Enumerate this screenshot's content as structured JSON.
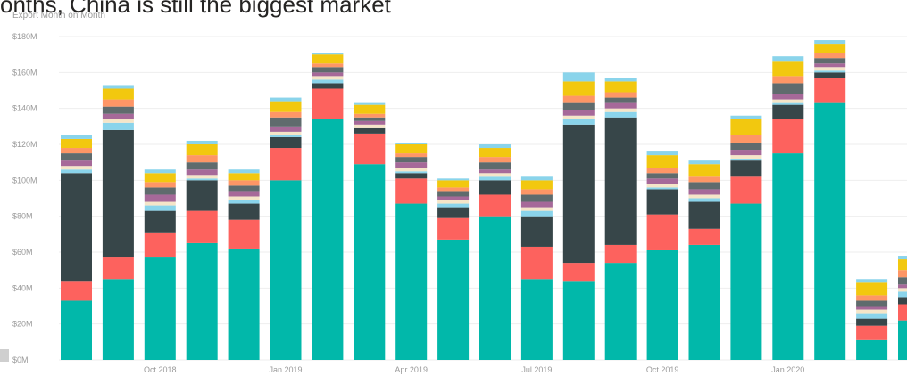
{
  "header": {
    "title": "onths, China is still the biggest market",
    "subtitle": "Export Month on Month"
  },
  "chart_data": {
    "type": "bar",
    "stacked": true,
    "subtitle": "Export Month on Month",
    "ylim": [
      0,
      180
    ],
    "yticks": [
      0,
      20,
      40,
      60,
      80,
      100,
      120,
      140,
      160,
      180
    ],
    "ytick_labels": [
      "$0M",
      "$20M",
      "$40M",
      "$60M",
      "$80M",
      "$100M",
      "$120M",
      "$140M",
      "$160M",
      "$180M"
    ],
    "xtick_labels": [
      {
        "label": "Oct 2018",
        "bar_index": 2
      },
      {
        "label": "Jan 2019",
        "bar_index": 5
      },
      {
        "label": "Apr 2019",
        "bar_index": 8
      },
      {
        "label": "Jul 2019",
        "bar_index": 11
      },
      {
        "label": "Oct 2019",
        "bar_index": 14
      },
      {
        "label": "Jan 2020",
        "bar_index": 17
      }
    ],
    "grid": true,
    "legend": "none",
    "colors": [
      "#01b8aa",
      "#fd625e",
      "#374649",
      "#8ad4eb",
      "#f5e5c8",
      "#a66999",
      "#5f6b6d",
      "#fe9666",
      "#f2c80f",
      "#8ad4eb"
    ],
    "series": [
      {
        "values": [
          33,
          45,
          57,
          65,
          62,
          100,
          134,
          109,
          87,
          67,
          80,
          45,
          44,
          54,
          61,
          64,
          87,
          115,
          143,
          11,
          22
        ]
      },
      {
        "values": [
          11,
          12,
          14,
          18,
          16,
          18,
          17,
          17,
          14,
          12,
          12,
          18,
          10,
          10,
          20,
          9,
          15,
          19,
          14,
          8,
          9
        ]
      },
      {
        "values": [
          60,
          71,
          12,
          17,
          9,
          6,
          3,
          3,
          3,
          6,
          8,
          17,
          77,
          71,
          14,
          15,
          9,
          8,
          3,
          4,
          4
        ]
      },
      {
        "values": [
          2,
          4,
          3,
          1,
          2,
          1,
          2,
          0,
          1,
          2,
          2,
          3,
          3,
          3,
          1,
          2,
          1,
          1,
          1,
          3,
          3
        ]
      },
      {
        "values": [
          2,
          2,
          2,
          2,
          2,
          2,
          2,
          2,
          2,
          2,
          2,
          2,
          2,
          2,
          2,
          2,
          2,
          2,
          2,
          2,
          2
        ]
      },
      {
        "values": [
          3,
          3,
          4,
          3,
          3,
          3,
          2,
          2,
          3,
          2,
          2,
          3,
          3,
          3,
          3,
          3,
          3,
          3,
          2,
          2,
          2
        ]
      },
      {
        "values": [
          4,
          4,
          4,
          4,
          3,
          5,
          3,
          2,
          3,
          3,
          4,
          4,
          4,
          3,
          3,
          4,
          4,
          6,
          3,
          3,
          4
        ]
      },
      {
        "values": [
          3,
          4,
          3,
          4,
          3,
          3,
          2,
          2,
          2,
          2,
          3,
          3,
          4,
          3,
          3,
          3,
          4,
          4,
          3,
          3,
          4
        ]
      },
      {
        "values": [
          5,
          6,
          5,
          6,
          4,
          6,
          5,
          5,
          5,
          4,
          5,
          5,
          8,
          6,
          7,
          7,
          9,
          8,
          5,
          7,
          6
        ]
      },
      {
        "values": [
          2,
          2,
          2,
          2,
          2,
          2,
          1,
          1,
          1,
          1,
          2,
          2,
          5,
          2,
          2,
          2,
          2,
          3,
          2,
          2,
          2
        ]
      }
    ]
  }
}
